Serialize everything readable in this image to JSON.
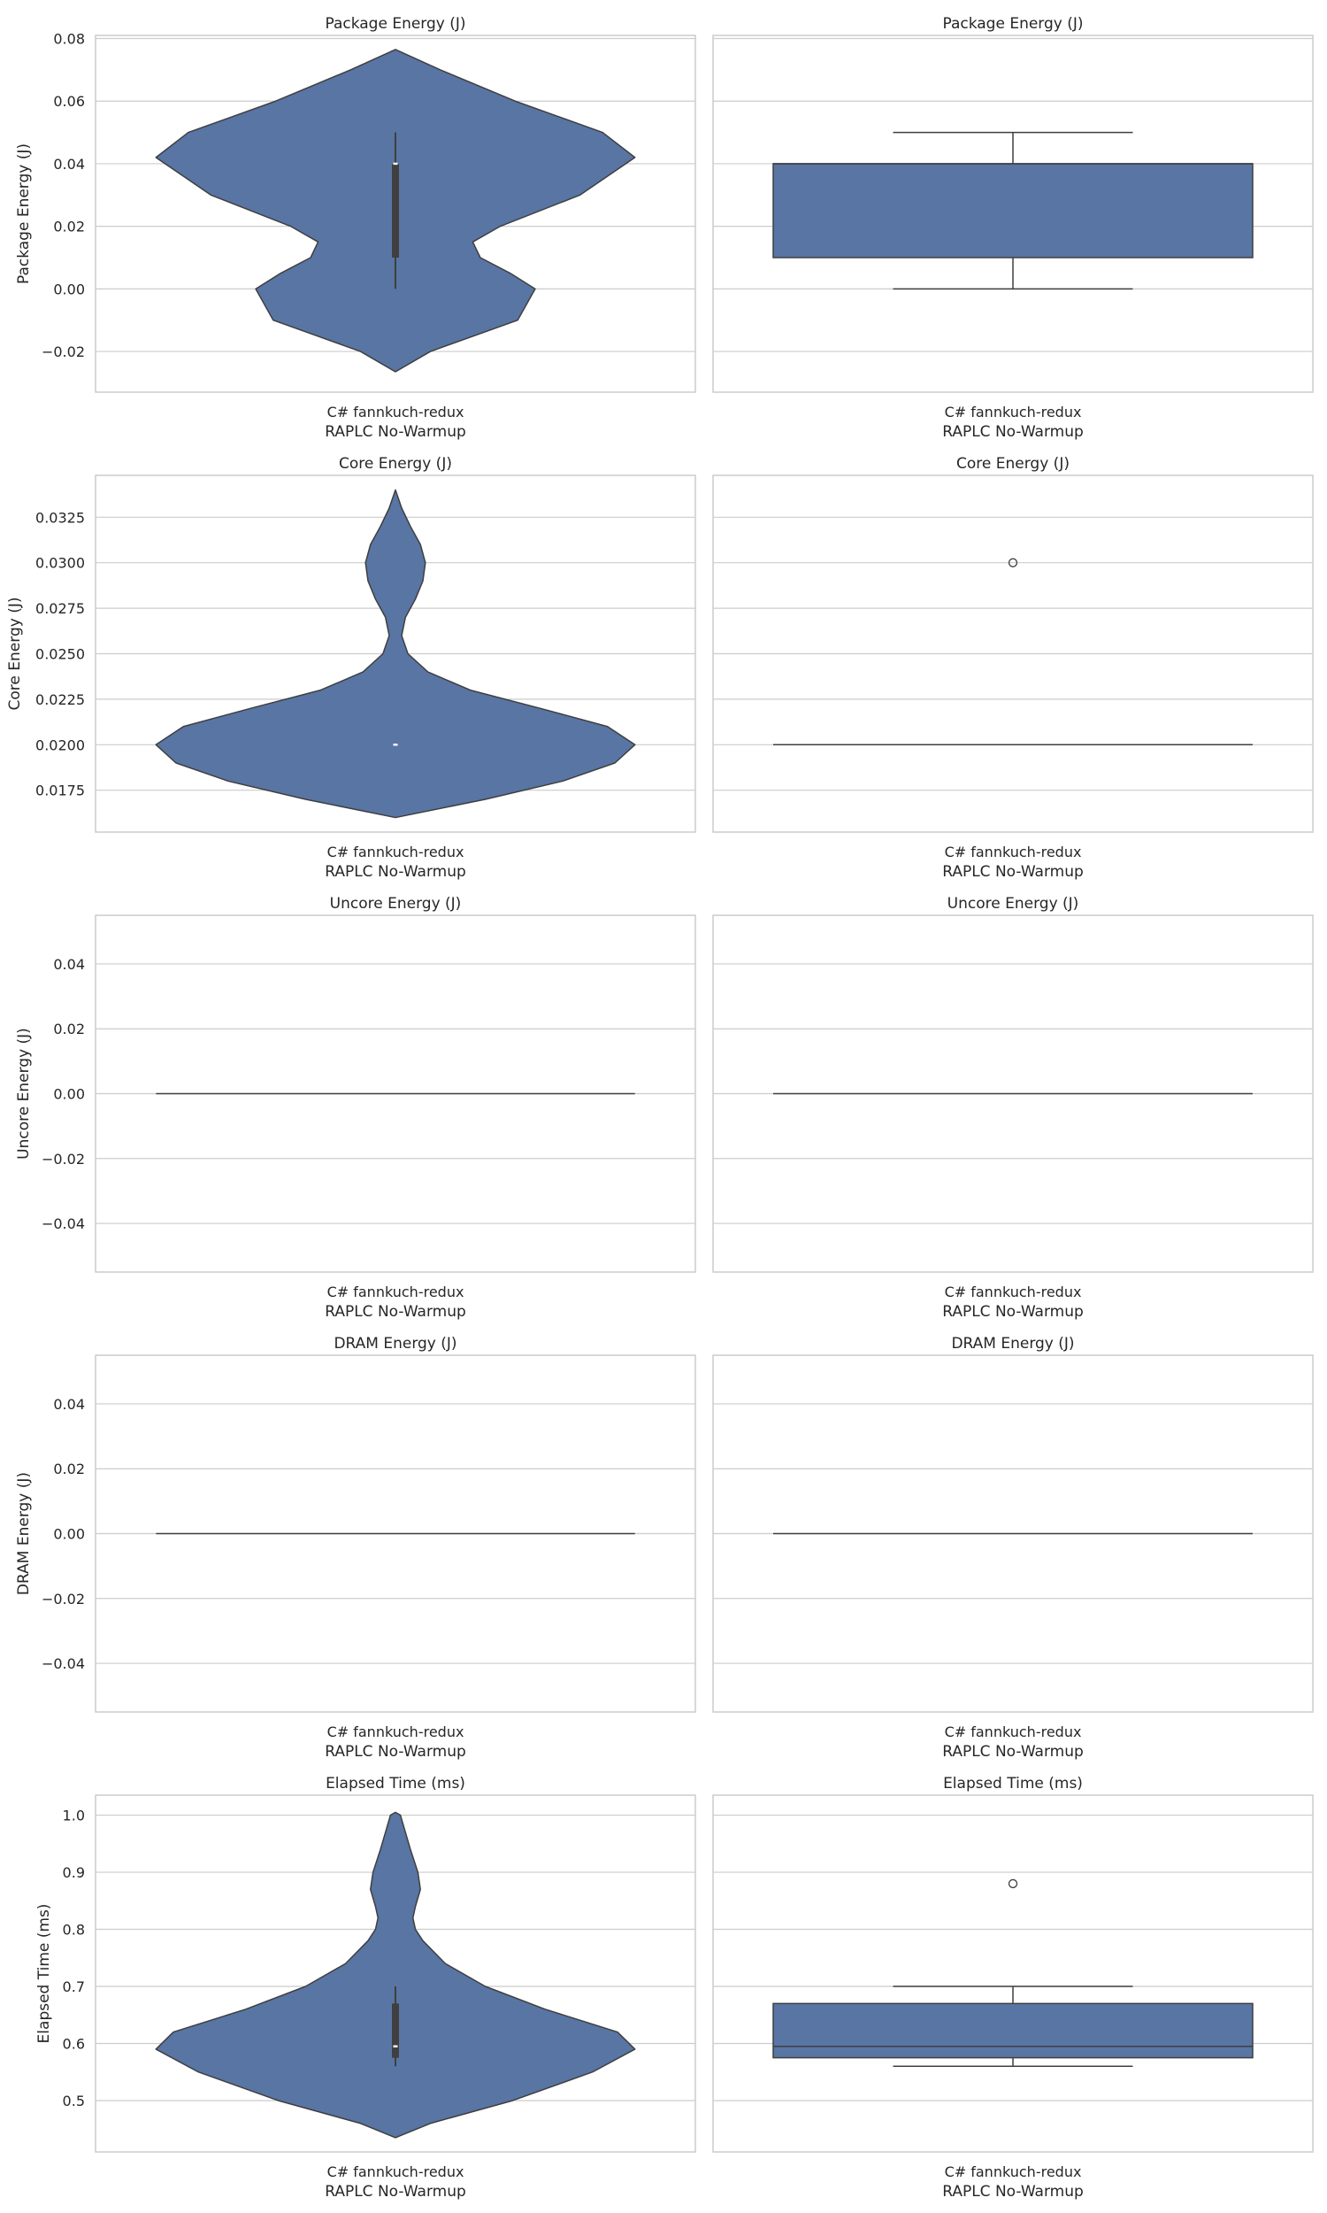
{
  "colors": {
    "fill": "#5875a4",
    "edge": "#3f3f3f",
    "grid": "#cccccc",
    "frame": "#cccccc",
    "background": "#ffffff"
  },
  "chart_data": [
    {
      "type": "violin",
      "title": "Package Energy (J)",
      "ylabel": "Package Energy (J)",
      "xlabel": "RAPLC No-Warmup",
      "categories": [
        "C# fannkuch-redux"
      ],
      "ylim": [
        -0.033,
        0.081
      ],
      "yticks": [
        -0.02,
        0.0,
        0.02,
        0.04,
        0.06,
        0.08
      ],
      "ytick_labels": [
        "−0.02",
        "0.00",
        "0.02",
        "0.04",
        "0.06",
        "0.08"
      ],
      "profile": [
        [
          -0.0265,
          0.0
        ],
        [
          -0.02,
          0.14
        ],
        [
          -0.01,
          0.49
        ],
        [
          0.0,
          0.56
        ],
        [
          0.005,
          0.46
        ],
        [
          0.01,
          0.34
        ],
        [
          0.015,
          0.31
        ],
        [
          0.02,
          0.42
        ],
        [
          0.03,
          0.74
        ],
        [
          0.042,
          0.96
        ],
        [
          0.05,
          0.83
        ],
        [
          0.06,
          0.48
        ],
        [
          0.07,
          0.18
        ],
        [
          0.0765,
          0.0
        ]
      ],
      "quartiles": [
        0.01,
        0.04
      ],
      "median": 0.04,
      "whiskers": [
        0.0,
        0.05
      ],
      "grid": true
    },
    {
      "type": "box",
      "title": "Package Energy (J)",
      "xlabel": "RAPLC No-Warmup",
      "categories": [
        "C# fannkuch-redux"
      ],
      "ylim": [
        -0.033,
        0.081
      ],
      "yticks": [
        -0.02,
        0.0,
        0.02,
        0.04,
        0.06,
        0.08
      ],
      "q1": 0.01,
      "median": 0.04,
      "q3": 0.04,
      "whisker_low": 0.0,
      "whisker_high": 0.05,
      "outliers": [],
      "grid": true
    },
    {
      "type": "violin",
      "title": "Core Energy (J)",
      "ylabel": "Core Energy (J)",
      "xlabel": "RAPLC No-Warmup",
      "categories": [
        "C# fannkuch-redux"
      ],
      "ylim": [
        0.0152,
        0.0348
      ],
      "yticks": [
        0.0175,
        0.02,
        0.0225,
        0.025,
        0.0275,
        0.03,
        0.0325
      ],
      "ytick_labels": [
        "0.0175",
        "0.0200",
        "0.0225",
        "0.0250",
        "0.0275",
        "0.0300",
        "0.0325"
      ],
      "profile": [
        [
          0.016,
          0.0
        ],
        [
          0.017,
          0.36
        ],
        [
          0.018,
          0.67
        ],
        [
          0.019,
          0.88
        ],
        [
          0.02,
          0.96
        ],
        [
          0.021,
          0.85
        ],
        [
          0.022,
          0.58
        ],
        [
          0.023,
          0.3
        ],
        [
          0.024,
          0.13
        ],
        [
          0.025,
          0.05
        ],
        [
          0.026,
          0.025
        ],
        [
          0.027,
          0.04
        ],
        [
          0.028,
          0.08
        ],
        [
          0.029,
          0.11
        ],
        [
          0.03,
          0.12
        ],
        [
          0.031,
          0.1
        ],
        [
          0.032,
          0.06
        ],
        [
          0.033,
          0.025
        ],
        [
          0.034,
          0.0
        ]
      ],
      "quartiles": [
        0.02,
        0.02
      ],
      "median": 0.02,
      "whiskers": [
        0.02,
        0.02
      ],
      "grid": true
    },
    {
      "type": "box",
      "title": "Core Energy (J)",
      "xlabel": "RAPLC No-Warmup",
      "categories": [
        "C# fannkuch-redux"
      ],
      "ylim": [
        0.0152,
        0.0348
      ],
      "yticks": [
        0.0175,
        0.02,
        0.0225,
        0.025,
        0.0275,
        0.03,
        0.0325
      ],
      "q1": 0.02,
      "median": 0.02,
      "q3": 0.02,
      "whisker_low": 0.02,
      "whisker_high": 0.02,
      "outliers": [
        0.03
      ],
      "grid": true
    },
    {
      "type": "violin",
      "title": "Uncore Energy (J)",
      "ylabel": "Uncore Energy (J)",
      "xlabel": "RAPLC No-Warmup",
      "categories": [
        "C# fannkuch-redux"
      ],
      "ylim": [
        -0.055,
        0.055
      ],
      "yticks": [
        -0.04,
        -0.02,
        0.0,
        0.02,
        0.04
      ],
      "ytick_labels": [
        "−0.04",
        "−0.02",
        "0.00",
        "0.02",
        "0.04"
      ],
      "profile": [
        [
          0.0,
          0.96
        ]
      ],
      "quartiles": [
        0.0,
        0.0
      ],
      "median": 0.0,
      "whiskers": [
        0.0,
        0.0
      ],
      "grid": true
    },
    {
      "type": "box",
      "title": "Uncore Energy (J)",
      "xlabel": "RAPLC No-Warmup",
      "categories": [
        "C# fannkuch-redux"
      ],
      "ylim": [
        -0.055,
        0.055
      ],
      "yticks": [
        -0.04,
        -0.02,
        0.0,
        0.02,
        0.04
      ],
      "q1": 0.0,
      "median": 0.0,
      "q3": 0.0,
      "whisker_low": 0.0,
      "whisker_high": 0.0,
      "outliers": [],
      "grid": true
    },
    {
      "type": "violin",
      "title": "DRAM Energy (J)",
      "ylabel": "DRAM Energy (J)",
      "xlabel": "RAPLC No-Warmup",
      "categories": [
        "C# fannkuch-redux"
      ],
      "ylim": [
        -0.055,
        0.055
      ],
      "yticks": [
        -0.04,
        -0.02,
        0.0,
        0.02,
        0.04
      ],
      "ytick_labels": [
        "−0.04",
        "−0.02",
        "0.00",
        "0.02",
        "0.04"
      ],
      "profile": [
        [
          0.0,
          0.96
        ]
      ],
      "quartiles": [
        0.0,
        0.0
      ],
      "median": 0.0,
      "whiskers": [
        0.0,
        0.0
      ],
      "grid": true
    },
    {
      "type": "box",
      "title": "DRAM Energy (J)",
      "xlabel": "RAPLC No-Warmup",
      "categories": [
        "C# fannkuch-redux"
      ],
      "ylim": [
        -0.055,
        0.055
      ],
      "yticks": [
        -0.04,
        -0.02,
        0.0,
        0.02,
        0.04
      ],
      "q1": 0.0,
      "median": 0.0,
      "q3": 0.0,
      "whisker_low": 0.0,
      "whisker_high": 0.0,
      "outliers": [],
      "grid": true
    },
    {
      "type": "violin",
      "title": "Elapsed Time (ms)",
      "ylabel": "Elapsed Time (ms)",
      "xlabel": "RAPLC No-Warmup",
      "categories": [
        "C# fannkuch-redux"
      ],
      "ylim": [
        0.41,
        1.035
      ],
      "yticks": [
        0.5,
        0.6,
        0.7,
        0.8,
        0.9,
        1.0
      ],
      "ytick_labels": [
        "0.5",
        "0.6",
        "0.7",
        "0.8",
        "0.9",
        "1.0"
      ],
      "profile": [
        [
          0.435,
          0.0
        ],
        [
          0.46,
          0.14
        ],
        [
          0.5,
          0.47
        ],
        [
          0.55,
          0.79
        ],
        [
          0.59,
          0.96
        ],
        [
          0.62,
          0.89
        ],
        [
          0.66,
          0.6
        ],
        [
          0.7,
          0.36
        ],
        [
          0.74,
          0.2
        ],
        [
          0.78,
          0.11
        ],
        [
          0.8,
          0.08
        ],
        [
          0.82,
          0.07
        ],
        [
          0.84,
          0.08
        ],
        [
          0.87,
          0.1
        ],
        [
          0.9,
          0.09
        ],
        [
          0.94,
          0.06
        ],
        [
          0.97,
          0.04
        ],
        [
          1.0,
          0.02
        ],
        [
          1.005,
          0.0
        ]
      ],
      "quartiles": [
        0.575,
        0.67
      ],
      "median": 0.595,
      "whiskers": [
        0.56,
        0.7
      ],
      "grid": true
    },
    {
      "type": "box",
      "title": "Elapsed Time (ms)",
      "xlabel": "RAPLC No-Warmup",
      "categories": [
        "C# fannkuch-redux"
      ],
      "ylim": [
        0.41,
        1.035
      ],
      "yticks": [
        0.5,
        0.6,
        0.7,
        0.8,
        0.9,
        1.0
      ],
      "q1": 0.575,
      "median": 0.595,
      "q3": 0.67,
      "whisker_low": 0.56,
      "whisker_high": 0.7,
      "outliers": [
        0.88
      ],
      "grid": true
    }
  ]
}
